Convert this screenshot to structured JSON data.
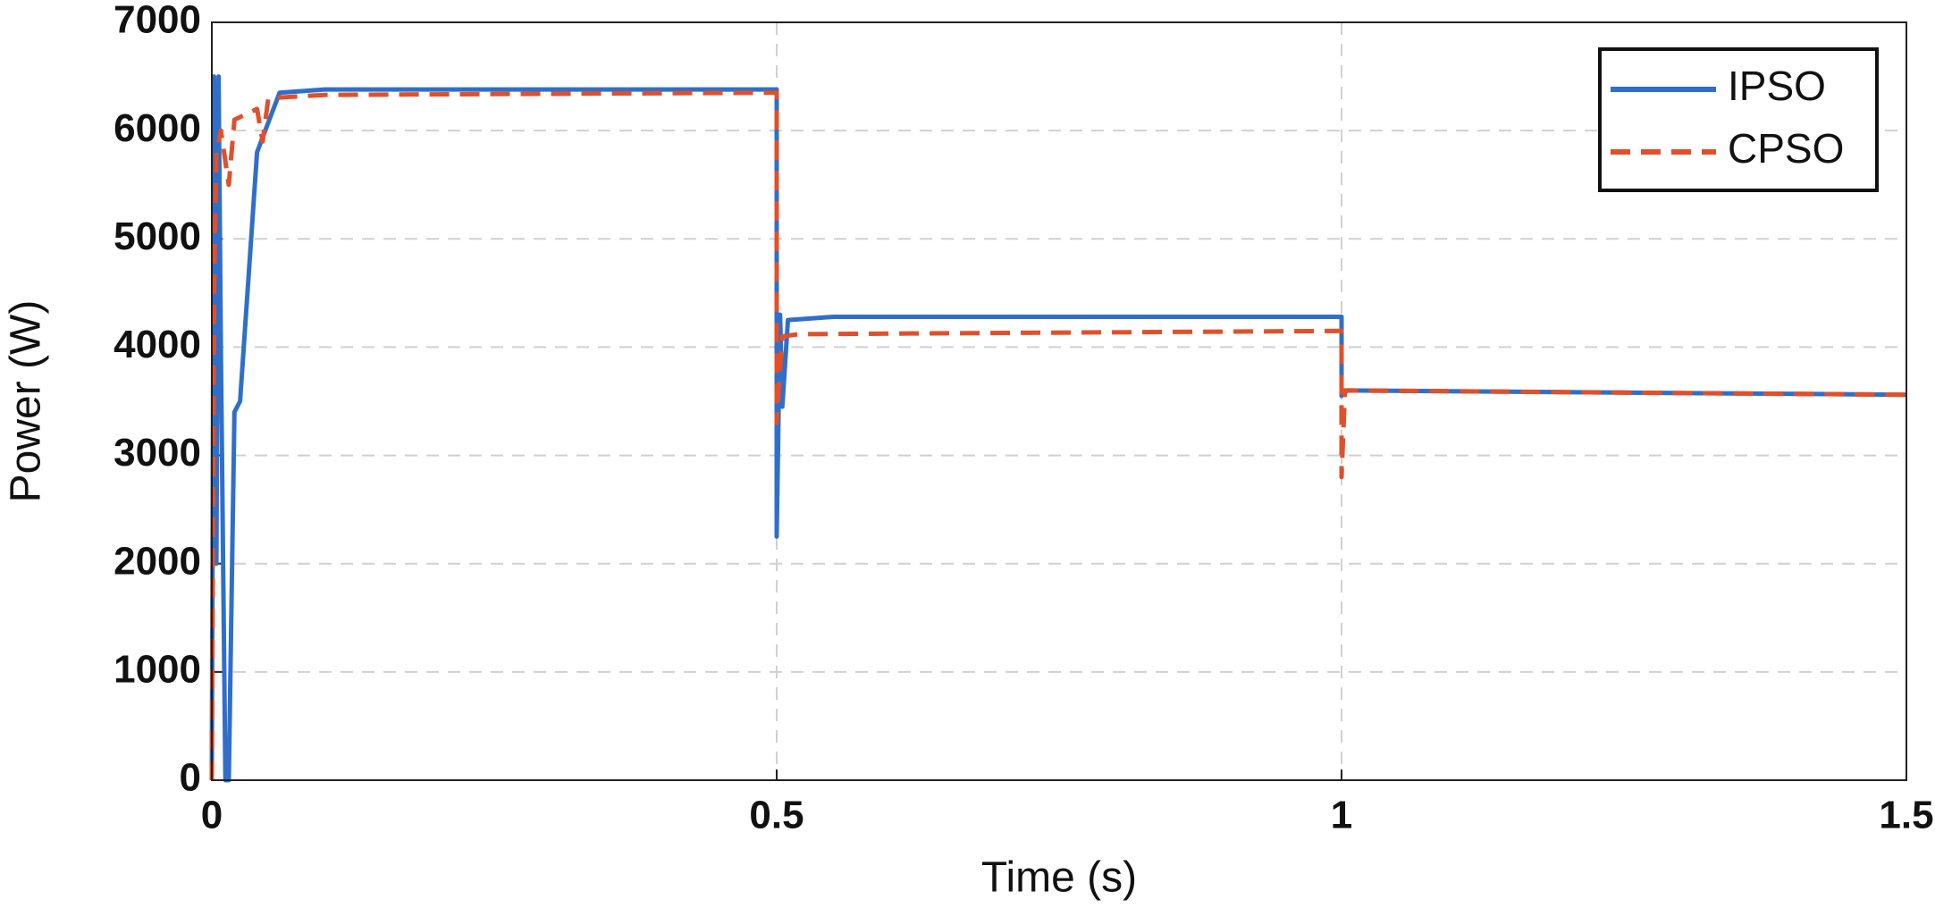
{
  "chart_data": {
    "type": "line",
    "xlabel": "Time (s)",
    "ylabel": "Power (W)",
    "xlim": [
      0,
      1.5
    ],
    "xticks": [
      0,
      0.5,
      1,
      1.5
    ],
    "ylim": [
      0,
      7000
    ],
    "yticks": [
      0,
      1000,
      2000,
      3000,
      4000,
      5000,
      6000,
      7000
    ],
    "grid": true,
    "legend": "upper right",
    "series": [
      {
        "name": "IPSO",
        "color": "#2f6fca",
        "line_style": "solid",
        "x": [
          0,
          0.002,
          0.004,
          0.006,
          0.008,
          0.012,
          0.015,
          0.02,
          0.025,
          0.04,
          0.06,
          0.1,
          0.5,
          0.5,
          0.503,
          0.505,
          0.51,
          0.55,
          1.0,
          1.0,
          1.005,
          1.5
        ],
        "values": [
          0,
          6500,
          2000,
          6500,
          4000,
          0,
          0,
          3400,
          3500,
          5800,
          6350,
          6380,
          6380,
          2250,
          4300,
          3450,
          4250,
          4280,
          4280,
          3550,
          3600,
          3560
        ]
      },
      {
        "name": "CPSO",
        "color": "#e0502a",
        "line_style": "dashed",
        "x": [
          0,
          0.002,
          0.004,
          0.008,
          0.015,
          0.02,
          0.03,
          0.04,
          0.045,
          0.05,
          0.1,
          0.5,
          0.5,
          0.505,
          0.52,
          1.0,
          1.0,
          1.003,
          1.5
        ],
        "values": [
          0,
          4500,
          5800,
          6000,
          5500,
          6100,
          6150,
          6200,
          5900,
          6300,
          6330,
          6350,
          3300,
          4100,
          4120,
          4150,
          2800,
          3600,
          3560
        ]
      }
    ]
  }
}
